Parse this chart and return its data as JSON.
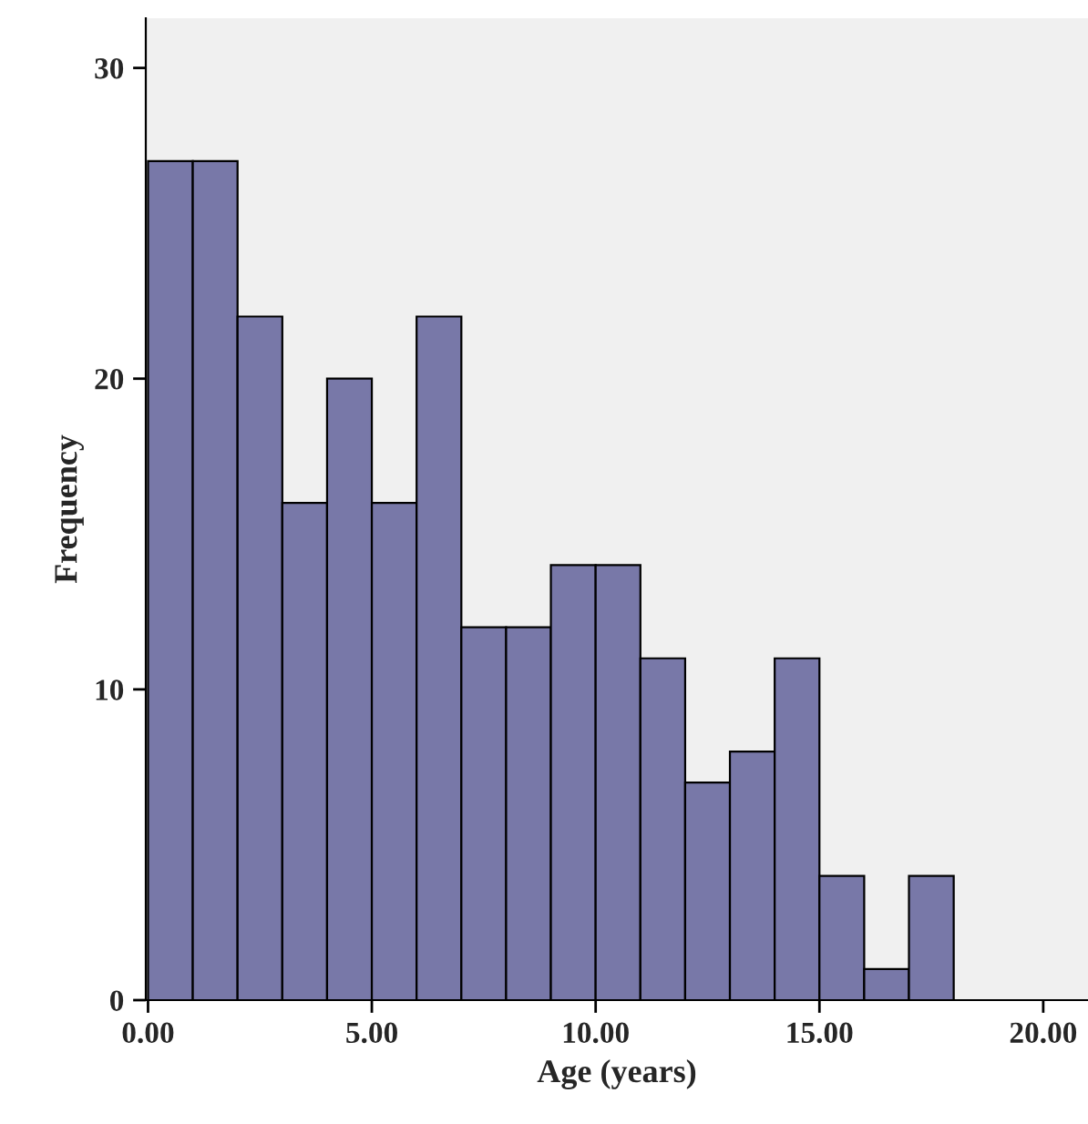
{
  "chart_data": {
    "type": "histogram",
    "xlabel": "Age (years)",
    "ylabel": "Frequency",
    "bins": [
      0,
      1,
      2,
      3,
      4,
      5,
      6,
      7,
      8,
      9,
      10,
      11,
      12,
      13,
      14,
      15,
      16,
      17,
      18
    ],
    "values": [
      27,
      27,
      22,
      16,
      20,
      16,
      22,
      12,
      12,
      14,
      14,
      11,
      7,
      8,
      11,
      4,
      1,
      4
    ],
    "color": "#7878a8",
    "xlim": [
      -0.05,
      21
    ],
    "ylim": [
      0,
      31.6
    ],
    "xticks": [
      {
        "value": 0,
        "label": "0.00"
      },
      {
        "value": 5,
        "label": "5.00"
      },
      {
        "value": 10,
        "label": "10.00"
      },
      {
        "value": 15,
        "label": "15.00"
      },
      {
        "value": 20,
        "label": "20.00"
      }
    ],
    "yticks": [
      0,
      10,
      20,
      30
    ],
    "grid": false
  }
}
